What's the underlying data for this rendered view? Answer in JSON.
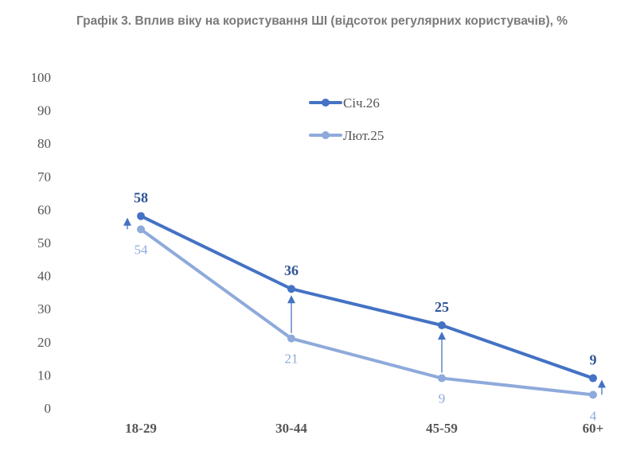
{
  "chart_data": {
    "type": "line",
    "title": "Графік 3. Вплив віку на користування ШІ (відсоток регулярних користувачів), %",
    "categories": [
      "18-29",
      "30-44",
      "45-59",
      "60+"
    ],
    "series": [
      {
        "name": "Січ.26",
        "values": [
          58,
          36,
          25,
          9
        ],
        "labels": [
          "58",
          "36",
          "25",
          "9"
        ],
        "color": "#4472c4"
      },
      {
        "name": "Лют.25",
        "values": [
          54,
          21,
          9,
          4
        ],
        "labels": [
          "54",
          "21",
          "9",
          "4"
        ],
        "color": "#8eaadb"
      }
    ],
    "ylim": [
      0,
      100
    ],
    "yticks": [
      "0",
      "10",
      "20",
      "30",
      "40",
      "50",
      "60",
      "70",
      "80",
      "90",
      "100"
    ],
    "legend_position": "top-center",
    "grid": false,
    "change_arrows": "up"
  }
}
